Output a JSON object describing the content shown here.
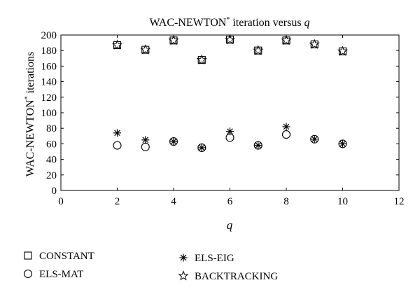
{
  "chart_data": {
    "type": "scatter",
    "title_main": "WAC-NEWTON",
    "title_sup": "*",
    "title_rest": " iteration versus ",
    "title_var": "q",
    "xlabel": "q",
    "ylabel_main": "WAC-NEWTON",
    "ylabel_sup": "*",
    "ylabel_rest": " iterations",
    "xlim": [
      0,
      12
    ],
    "ylim": [
      0,
      200
    ],
    "xticks": [
      "0",
      "2",
      "4",
      "6",
      "8",
      "10",
      "12"
    ],
    "yticks": [
      "0",
      "20",
      "40",
      "60",
      "80",
      "100",
      "120",
      "140",
      "160",
      "180",
      "200"
    ],
    "legend_placement": "bottom",
    "series": [
      {
        "name": "CONSTANT",
        "marker": "square",
        "x": [
          2,
          3,
          4,
          5,
          6,
          7,
          8,
          9,
          10
        ],
        "y": [
          187,
          181,
          193,
          168,
          194,
          180,
          193,
          188,
          179
        ]
      },
      {
        "name": "ELS-MAT",
        "marker": "circle",
        "x": [
          2,
          3,
          4,
          5,
          6,
          7,
          8,
          9,
          10
        ],
        "y": [
          58,
          56,
          63,
          55,
          68,
          58,
          72,
          66,
          60
        ]
      },
      {
        "name": "ELS-EIG",
        "marker": "asterisk",
        "x": [
          2,
          3,
          4,
          5,
          6,
          7,
          8,
          9,
          10
        ],
        "y": [
          74,
          65,
          63,
          55,
          76,
          58,
          82,
          66,
          60
        ]
      },
      {
        "name": "BACKTRACKING",
        "marker": "star",
        "x": [
          2,
          3,
          4,
          5,
          6,
          7,
          8,
          9,
          10
        ],
        "y": [
          187,
          181,
          193,
          168,
          194,
          180,
          193,
          188,
          179
        ]
      }
    ]
  }
}
